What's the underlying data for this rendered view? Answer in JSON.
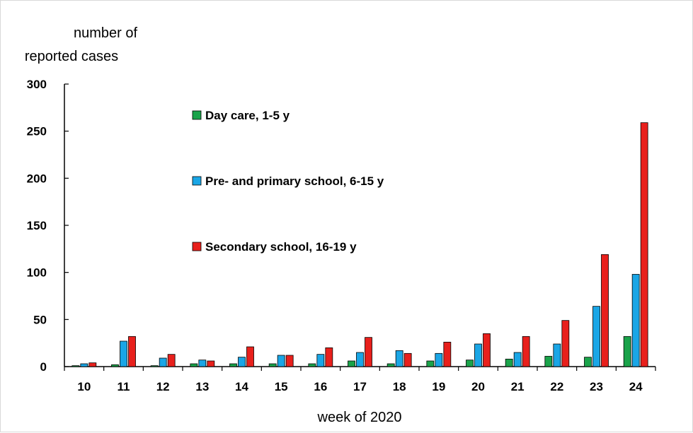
{
  "chart_data": {
    "type": "bar",
    "ylabel_line1": "number of",
    "ylabel_line2": "reported cases",
    "xlabel": "week of 2020",
    "ylim": [
      0,
      300
    ],
    "yticks": [
      0,
      50,
      100,
      150,
      200,
      250,
      300
    ],
    "categories": [
      "10",
      "11",
      "12",
      "13",
      "14",
      "15",
      "16",
      "17",
      "18",
      "19",
      "20",
      "21",
      "22",
      "23",
      "24"
    ],
    "series": [
      {
        "name": "Day care, 1-5 y",
        "color": "#1aa34a",
        "values": [
          1,
          2,
          1,
          3,
          3,
          3,
          3,
          6,
          3,
          6,
          7,
          8,
          11,
          10,
          32
        ]
      },
      {
        "name": "Pre- and primary school, 6-15 y",
        "color": "#1aa6e6",
        "values": [
          3,
          27,
          9,
          7,
          10,
          12,
          13,
          15,
          17,
          14,
          24,
          15,
          24,
          64,
          98
        ]
      },
      {
        "name": "Secondary school, 16-19 y",
        "color": "#e8201c",
        "values": [
          4,
          32,
          13,
          6,
          21,
          12,
          20,
          31,
          14,
          26,
          35,
          32,
          49,
          119,
          259
        ]
      }
    ],
    "legend_position": "upper-left inside plot",
    "grid": false
  }
}
